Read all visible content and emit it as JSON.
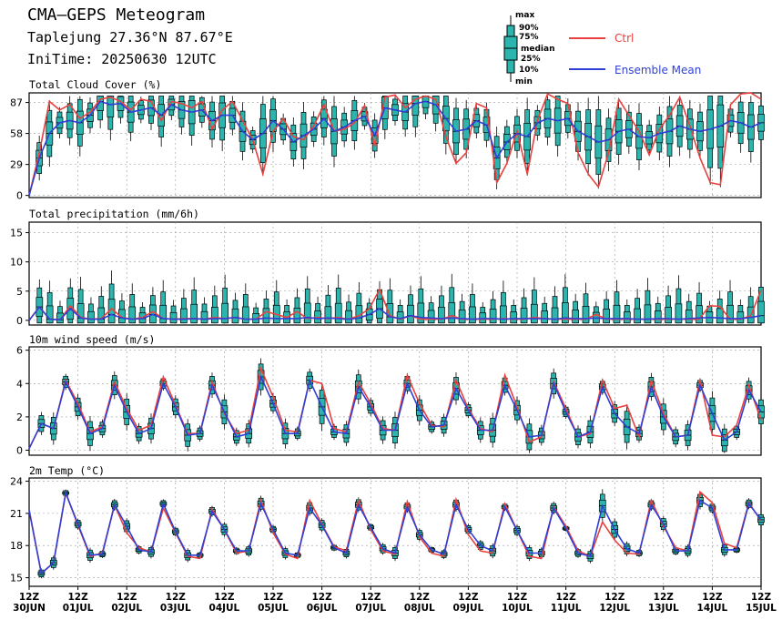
{
  "header": {
    "title": "CMA—GEPS Meteogram",
    "station": "Taplejung 27.36°N 87.67°E",
    "initime": "IniTime: 20250630 12UTC"
  },
  "legend": {
    "box_labels": [
      "max",
      "90%",
      "75%",
      "median",
      "25%",
      "10%",
      "min"
    ],
    "ctrl_label": "Ctrl",
    "mean_label": "Ensemble Mean",
    "colors": {
      "box": "#2bb5ae",
      "ctrl": "#e8413f",
      "mean": "#2f3fd6",
      "frame": "#000000"
    }
  },
  "chart_data": [
    {
      "type": "line",
      "title": "Total Cloud Cover (%)",
      "y_ticks": [
        "87",
        "58",
        "29",
        "0"
      ],
      "ylim": [
        -2,
        96
      ],
      "x_tick_labels": [
        "12Z\n30JUN",
        "12Z\n01JUL",
        "12Z\n02JUL",
        "12Z\n03JUL",
        "12Z\n04JUL",
        "12Z\n05JUL",
        "12Z\n06JUL",
        "12Z\n07JUL",
        "12Z\n08JUL",
        "12Z\n09JUL",
        "12Z\n10JUL",
        "12Z\n11JUL",
        "12Z\n12JUL",
        "12Z\n13JUL",
        "12Z\n14JUL",
        "12Z\n15JUL"
      ],
      "series": [
        {
          "name": "Ctrl",
          "values": [
            0,
            40,
            88,
            80,
            85,
            72,
            78,
            90,
            92,
            88,
            80,
            90,
            88,
            70,
            88,
            86,
            82,
            88,
            62,
            80,
            88,
            70,
            52,
            20,
            60,
            72,
            55,
            52,
            65,
            85,
            60,
            62,
            68,
            84,
            46,
            92,
            94,
            82,
            90,
            93,
            90,
            55,
            30,
            40,
            86,
            82,
            12,
            30,
            60,
            20,
            70,
            95,
            90,
            86,
            40,
            20,
            8,
            40,
            90,
            75,
            60,
            38,
            62,
            75,
            92,
            65,
            35,
            12,
            10,
            85,
            95,
            96,
            90
          ]
        },
        {
          "name": "Ensemble Mean",
          "values": [
            0,
            35,
            58,
            68,
            70,
            68,
            75,
            88,
            85,
            86,
            78,
            80,
            82,
            75,
            85,
            80,
            78,
            80,
            70,
            75,
            75,
            60,
            52,
            58,
            70,
            62,
            50,
            56,
            62,
            72,
            60,
            64,
            70,
            74,
            56,
            82,
            80,
            78,
            86,
            88,
            85,
            72,
            60,
            62,
            70,
            66,
            35,
            50,
            58,
            55,
            68,
            72,
            70,
            72,
            60,
            55,
            50,
            52,
            60,
            62,
            55,
            54,
            58,
            60,
            65,
            62,
            60,
            62,
            65,
            70,
            68,
            64,
            68
          ]
        }
      ]
    },
    {
      "type": "line",
      "title": "Total precipitation (mm/6h)",
      "y_ticks": [
        "15",
        "10",
        "5",
        "0"
      ],
      "ylim": [
        -0.8,
        16.8
      ],
      "series": [
        {
          "name": "Ctrl",
          "values": [
            0,
            2.3,
            0.2,
            0.1,
            2.5,
            0.5,
            0.2,
            0.3,
            2,
            0.5,
            0.2,
            0.5,
            1.5,
            0.3,
            0.2,
            0.3,
            0.3,
            0.2,
            0.5,
            0.3,
            0.5,
            0.2,
            0.2,
            1.5,
            1,
            0.5,
            1.5,
            0.3,
            0.5,
            0.3,
            0.5,
            0.2,
            0.8,
            2,
            5.3,
            0.8,
            0.2,
            0.8,
            0.2,
            0.2,
            0.2,
            0.8,
            0.2,
            0.2,
            0.2,
            0.2,
            0.3,
            0.2,
            0.2,
            0.5,
            0.3,
            0.2,
            0.2,
            0.2,
            0.2,
            1,
            0.2,
            0.2,
            0.2,
            0.2,
            0.2,
            0.2,
            0.2,
            0.2,
            0.2,
            0.2,
            2.5,
            2.4,
            0.2,
            0.2,
            0.8,
            5.2
          ]
        },
        {
          "name": "Ensemble Mean",
          "values": [
            0,
            2.3,
            0.2,
            0.1,
            2,
            0.4,
            0.2,
            0.2,
            1,
            0.4,
            0.2,
            0.3,
            1,
            0.3,
            0.2,
            0.2,
            0.3,
            0.2,
            0.3,
            0.3,
            0.5,
            0.2,
            0.2,
            0.4,
            0.3,
            0.3,
            0.3,
            0.5,
            0.3,
            0.4,
            0.3,
            0.2,
            0.4,
            1,
            2,
            0.6,
            0.3,
            0.8,
            0.5,
            0.4,
            0.3,
            0.4,
            0.3,
            0.2,
            0.3,
            0.3,
            0.2,
            0.3,
            0.3,
            0.3,
            0.3,
            0.2,
            0.4,
            0.3,
            0.3,
            0.4,
            0.3,
            0.3,
            0.3,
            0.2,
            0.2,
            0.3,
            0.3,
            0.2,
            0.3,
            0.4,
            0.5,
            0.4,
            0.3,
            0.3,
            0.5,
            0.8
          ]
        }
      ]
    },
    {
      "type": "line",
      "title": "10m wind speed (m/s)",
      "y_ticks": [
        "6",
        "4",
        "2",
        "0"
      ],
      "ylim": [
        -0.3,
        6.2
      ],
      "series": [
        {
          "name": "Ctrl",
          "values": [
            0.1,
            1.6,
            1.3,
            4.2,
            2.8,
            1.1,
            1.4,
            4.1,
            2.5,
            1.2,
            1.5,
            4.4,
            2.7,
            1,
            1,
            4.1,
            2.2,
            1,
            1.2,
            4.9,
            3.2,
            1.2,
            1.1,
            4.2,
            4,
            1.3,
            1.1,
            4.1,
            2.8,
            1.3,
            1.2,
            4.5,
            2.8,
            1.5,
            1.4,
            4.2,
            2.5,
            1.3,
            1.1,
            4.5,
            2.6,
            0.5,
            0.8,
            4.1,
            2.5,
            0.8,
            1,
            4.2,
            2.5,
            2.7,
            0.8,
            4.2,
            2.2,
            0.8,
            0.9,
            4.2,
            0.9,
            0.8,
            1.5,
            3.9,
            1.8
          ]
        },
        {
          "name": "Ensemble Mean",
          "values": [
            0.1,
            1.6,
            1.3,
            4.1,
            2.6,
            1,
            1.3,
            3.9,
            2.3,
            1,
            1.3,
            4,
            2.6,
            0.9,
            1,
            3.9,
            2.3,
            0.8,
            1,
            4.4,
            2.8,
            1,
            1,
            4.2,
            2.6,
            1.1,
            1,
            3.8,
            2.6,
            1.2,
            1.2,
            4,
            2.4,
            1.4,
            1.5,
            3.7,
            2.4,
            1.2,
            1.2,
            3.9,
            2.4,
            0.8,
            0.9,
            4,
            2.3,
            0.8,
            1.1,
            3.8,
            2.2,
            1.4,
            1,
            3.8,
            2,
            0.8,
            0.9,
            3.9,
            2.2,
            0.6,
            1.1,
            3.6,
            2.3
          ]
        }
      ]
    },
    {
      "type": "line",
      "title": "2m Temp (°C)",
      "y_ticks": [
        "24",
        "21",
        "18",
        "15"
      ],
      "ylim": [
        14.2,
        24.3
      ],
      "series": [
        {
          "name": "Ctrl",
          "values": [
            21.3,
            15.4,
            16.4,
            22.9,
            19.9,
            17,
            17.3,
            21.8,
            19.2,
            17.8,
            17.4,
            21.5,
            19.2,
            17,
            16.8,
            21.4,
            19.5,
            17.3,
            17.5,
            22.2,
            19.2,
            17.2,
            16.8,
            22.2,
            20,
            17.9,
            17.5,
            22.2,
            19.5,
            17.5,
            17.2,
            22.1,
            18.8,
            17.3,
            17,
            22.3,
            19,
            17.5,
            17.3,
            21.9,
            19.4,
            17,
            16.8,
            21.6,
            19.8,
            17.5,
            17,
            20.2,
            18.5,
            17.3,
            17.2,
            22.2,
            19.8,
            17.8,
            17.5,
            23,
            22,
            18.2,
            17.8,
            22,
            20.3
          ]
        },
        {
          "name": "Ensemble Mean",
          "values": [
            21.3,
            15.4,
            16.4,
            22.9,
            20,
            17.1,
            17.2,
            21.8,
            19.8,
            17.6,
            17.4,
            21.9,
            19.3,
            17.1,
            17.1,
            21.2,
            19.5,
            17.5,
            17.5,
            21.9,
            19.5,
            17.3,
            17.1,
            21.5,
            19.9,
            17.8,
            17.3,
            21.8,
            19.7,
            17.7,
            17.3,
            21.6,
            19,
            17.6,
            17.2,
            21.8,
            19.5,
            18,
            17.5,
            21.6,
            19.4,
            17.3,
            17.3,
            21.5,
            19.6,
            17.3,
            17,
            21.7,
            19.5,
            17.7,
            17.3,
            21.8,
            20,
            17.5,
            17.5,
            22.2,
            21.5,
            17.6,
            17.6,
            21.9,
            20.4
          ]
        }
      ]
    }
  ]
}
